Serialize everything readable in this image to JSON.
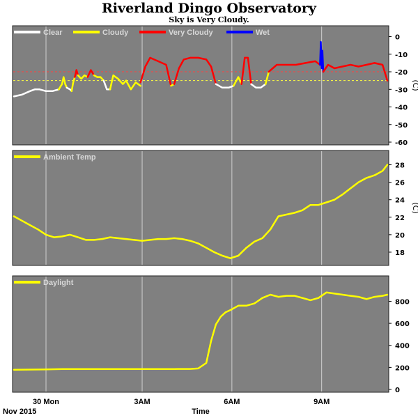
{
  "title": "Riverland Dingo Observatory",
  "subtitle": "Sky is Very Cloudy.",
  "colors": {
    "clear": "#ffffff",
    "cloudy": "#ffff00",
    "very_cloudy": "#ff0000",
    "wet": "#0000ff",
    "panel": "#808080",
    "threshold_very_cloudy": "#ff4040",
    "threshold_cloudy": "#ffff40"
  },
  "chart_data": [
    {
      "type": "line",
      "name": "sky-temperature",
      "legend": [
        "Clear",
        "Cloudy",
        "Very Cloudy",
        "Wet"
      ],
      "ylabel": "(C)",
      "ylim": [
        -60,
        3
      ],
      "yticks": [
        0,
        -10,
        -20,
        -30,
        -40,
        -50,
        -60
      ],
      "thresholds": [
        -20,
        -25
      ],
      "grid": "vertical",
      "legend_position": "top-left",
      "series": [
        {
          "state": "Clear",
          "x": [
            0.0,
            0.5,
            1.0,
            1.3,
            1.6,
            2.0,
            2.4,
            2.8
          ],
          "y": [
            -34,
            -33,
            -31,
            -30,
            -30,
            -31,
            -31,
            -30
          ]
        },
        {
          "state": "Cloudy",
          "x": [
            2.8,
            3.0,
            3.1,
            3.2,
            3.3
          ],
          "y": [
            -30,
            -27,
            -23,
            -27,
            -29
          ]
        },
        {
          "state": "Clear",
          "x": [
            3.3,
            3.5,
            3.6
          ],
          "y": [
            -29,
            -30,
            -31
          ]
        },
        {
          "state": "Cloudy",
          "x": [
            3.6,
            3.7,
            3.8
          ],
          "y": [
            -31,
            -26,
            -23
          ]
        },
        {
          "state": "Very Cloudy",
          "x": [
            3.8,
            3.9,
            4.0
          ],
          "y": [
            -23,
            -19,
            -22
          ]
        },
        {
          "state": "Cloudy",
          "x": [
            4.0,
            4.2,
            4.4,
            4.6
          ],
          "y": [
            -22,
            -24,
            -22,
            -23
          ]
        },
        {
          "state": "Very Cloudy",
          "x": [
            4.6,
            4.8,
            5.0
          ],
          "y": [
            -23,
            -19,
            -22
          ]
        },
        {
          "state": "Cloudy",
          "x": [
            5.0,
            5.2,
            5.4,
            5.6
          ],
          "y": [
            -22,
            -23,
            -23,
            -25
          ]
        },
        {
          "state": "Clear",
          "x": [
            5.6,
            5.8,
            6.0
          ],
          "y": [
            -25,
            -30,
            -30
          ]
        },
        {
          "state": "Cloudy",
          "x": [
            6.0,
            6.2,
            6.5,
            6.8,
            7.0
          ],
          "y": [
            -30,
            -22,
            -24,
            -27,
            -25
          ]
        },
        {
          "state": "Cloudy",
          "x": [
            7.0,
            7.3,
            7.6,
            7.9
          ],
          "y": [
            -25,
            -30,
            -26,
            -28
          ]
        },
        {
          "state": "Very Cloudy",
          "x": [
            7.9,
            8.2,
            8.5,
            9.0,
            9.5,
            9.8
          ],
          "y": [
            -26,
            -17,
            -12,
            -14,
            -16,
            -28
          ]
        },
        {
          "state": "Cloudy",
          "x": [
            9.8,
            10.0
          ],
          "y": [
            -28,
            -27
          ]
        },
        {
          "state": "Very Cloudy",
          "x": [
            10.0,
            10.3,
            10.6,
            11.0,
            11.5,
            12.0,
            12.3,
            12.6
          ],
          "y": [
            -27,
            -18,
            -13,
            -12,
            -12,
            -13,
            -17,
            -27
          ]
        },
        {
          "state": "Clear",
          "x": [
            12.6,
            13.0,
            13.4,
            13.7
          ],
          "y": [
            -27,
            -29,
            -29,
            -28
          ]
        },
        {
          "state": "Cloudy",
          "x": [
            13.7,
            14.0,
            14.2
          ],
          "y": [
            -28,
            -23,
            -27
          ]
        },
        {
          "state": "Very Cloudy",
          "x": [
            14.2,
            14.4,
            14.6,
            14.8
          ],
          "y": [
            -27,
            -12,
            -12,
            -27
          ]
        },
        {
          "state": "Clear",
          "x": [
            14.8,
            15.1,
            15.4,
            15.7
          ],
          "y": [
            -27,
            -29,
            -29,
            -27
          ]
        },
        {
          "state": "Cloudy",
          "x": [
            15.7,
            15.9
          ],
          "y": [
            -27,
            -20
          ]
        },
        {
          "state": "Very Cloudy",
          "x": [
            15.9,
            16.4,
            17.0,
            17.6,
            18.2,
            18.8,
            19.1
          ],
          "y": [
            -20,
            -16,
            -16,
            -16,
            -15,
            -14,
            -16
          ]
        },
        {
          "state": "Wet",
          "x": [
            19.1,
            19.15,
            19.2,
            19.25,
            19.3
          ],
          "y": [
            -16,
            -3,
            -18,
            -8,
            -20
          ]
        },
        {
          "state": "Very Cloudy",
          "x": [
            19.3,
            19.6,
            20.0,
            20.5,
            21.0,
            21.5,
            22.0,
            22.5,
            23.0,
            23.3
          ],
          "y": [
            -20,
            -16,
            -18,
            -17,
            -16,
            -17,
            -16,
            -15,
            -16,
            -25
          ]
        }
      ]
    },
    {
      "type": "line",
      "name": "ambient-temperature",
      "legend": [
        "Ambient Temp"
      ],
      "ylabel": "(C)",
      "ylim": [
        16.8,
        29
      ],
      "yticks": [
        18,
        20,
        22,
        24,
        26,
        28
      ],
      "grid": "vertical",
      "legend_position": "top-left",
      "series": [
        {
          "name": "Ambient Temp",
          "x": [
            0.0,
            0.5,
            1.0,
            1.5,
            2.0,
            2.5,
            3.0,
            3.5,
            4.0,
            4.5,
            5.0,
            5.5,
            6.0,
            6.5,
            7.0,
            7.5,
            8.0,
            8.5,
            9.0,
            9.5,
            10.0,
            10.5,
            11.0,
            11.5,
            12.0,
            12.5,
            13.0,
            13.5,
            14.0,
            14.5,
            15.0,
            15.5,
            16.0,
            16.5,
            17.0,
            17.5,
            18.0,
            18.5,
            19.0,
            19.5,
            20.0,
            20.5,
            21.0,
            21.5,
            22.0,
            22.5,
            23.0,
            23.3
          ],
          "y": [
            22.1,
            21.6,
            21.1,
            20.6,
            20.0,
            19.7,
            19.8,
            20.0,
            19.7,
            19.4,
            19.4,
            19.5,
            19.7,
            19.6,
            19.5,
            19.4,
            19.3,
            19.4,
            19.5,
            19.5,
            19.6,
            19.5,
            19.3,
            19.0,
            18.5,
            18.0,
            17.6,
            17.3,
            17.6,
            18.5,
            19.2,
            19.6,
            20.6,
            22.1,
            22.3,
            22.5,
            22.8,
            23.4,
            23.4,
            23.7,
            24.0,
            24.6,
            25.3,
            26.0,
            26.5,
            26.8,
            27.3,
            28.0
          ]
        }
      ]
    },
    {
      "type": "line",
      "name": "daylight",
      "legend": [
        "Daylight"
      ],
      "ylabel": "",
      "ylim": [
        0,
        980
      ],
      "yticks": [
        0,
        200,
        400,
        600,
        800
      ],
      "grid": "vertical",
      "legend_position": "top-left",
      "series": [
        {
          "name": "Daylight",
          "x": [
            0.0,
            1.0,
            2.0,
            3.0,
            4.0,
            5.0,
            6.0,
            7.0,
            8.0,
            9.0,
            10.0,
            11.0,
            11.5,
            12.0,
            12.3,
            12.6,
            12.9,
            13.2,
            13.5,
            14.0,
            14.5,
            15.0,
            15.5,
            16.0,
            16.5,
            17.0,
            17.5,
            18.0,
            18.5,
            19.0,
            19.5,
            20.0,
            20.5,
            21.0,
            21.5,
            22.0,
            22.5,
            23.0,
            23.3
          ],
          "y": [
            178,
            180,
            182,
            185,
            185,
            185,
            185,
            185,
            185,
            185,
            185,
            186,
            190,
            240,
            440,
            590,
            660,
            700,
            720,
            760,
            760,
            780,
            830,
            860,
            840,
            850,
            850,
            830,
            810,
            830,
            880,
            870,
            860,
            850,
            840,
            820,
            840,
            850,
            860
          ]
        }
      ]
    }
  ],
  "x_axis": {
    "label": "Time",
    "date_label": "Nov 2015",
    "tick_labels": [
      {
        "hour": 2.0,
        "label": "30 Mon"
      },
      {
        "hour": 8.0,
        "label": "3AM"
      },
      {
        "hour": 13.6,
        "label": "6AM"
      },
      {
        "hour": 19.2,
        "label": "9AM"
      }
    ],
    "xlim": [
      0,
      23.3
    ]
  }
}
